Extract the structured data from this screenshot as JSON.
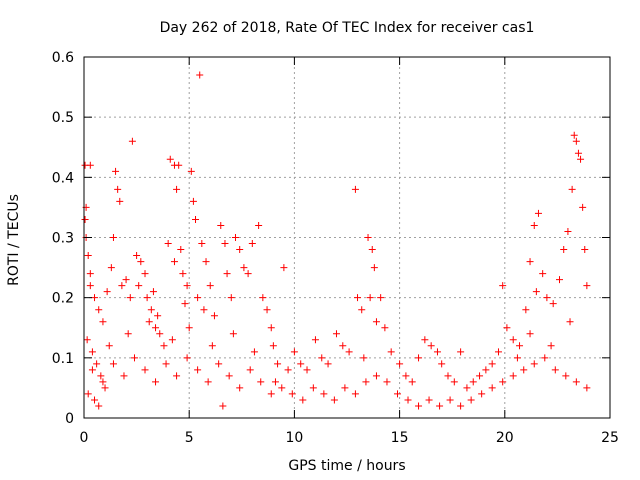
{
  "chart_data": {
    "type": "scatter",
    "title": "Day 262 of 2018, Rate Of TEC Index for receiver cas1",
    "xlabel": "GPS time / hours",
    "ylabel": "ROTI / TECUs",
    "xlim": [
      0,
      25
    ],
    "ylim": [
      0,
      0.6
    ],
    "x_ticks": [
      0,
      5,
      10,
      15,
      20,
      25
    ],
    "y_ticks": [
      0,
      0.1,
      0.2,
      0.3,
      0.4,
      0.5,
      0.6
    ],
    "x_tick_labels": [
      "0",
      "5",
      "10",
      "15",
      "20",
      "25"
    ],
    "y_tick_labels": [
      "0",
      "0.1",
      "0.2",
      "0.3",
      "0.4",
      "0.5",
      "0.6"
    ],
    "grid": true,
    "marker": "+",
    "color": "#ff0000",
    "series": [
      {
        "name": "ROTI",
        "points": [
          [
            0.05,
            0.42
          ],
          [
            0.3,
            0.42
          ],
          [
            0.1,
            0.35
          ],
          [
            0.05,
            0.33
          ],
          [
            0.1,
            0.3
          ],
          [
            0.2,
            0.27
          ],
          [
            0.3,
            0.22
          ],
          [
            0.5,
            0.2
          ],
          [
            0.7,
            0.18
          ],
          [
            0.9,
            0.16
          ],
          [
            0.15,
            0.13
          ],
          [
            0.4,
            0.11
          ],
          [
            0.6,
            0.09
          ],
          [
            0.8,
            0.07
          ],
          [
            1.0,
            0.05
          ],
          [
            0.2,
            0.04
          ],
          [
            0.5,
            0.03
          ],
          [
            1.2,
            0.12
          ],
          [
            1.5,
            0.41
          ],
          [
            1.6,
            0.38
          ],
          [
            1.7,
            0.36
          ],
          [
            1.4,
            0.3
          ],
          [
            1.3,
            0.25
          ],
          [
            1.8,
            0.22
          ],
          [
            2.0,
            0.23
          ],
          [
            2.2,
            0.2
          ],
          [
            2.3,
            0.46
          ],
          [
            2.5,
            0.27
          ],
          [
            2.7,
            0.26
          ],
          [
            2.9,
            0.24
          ],
          [
            3.0,
            0.2
          ],
          [
            3.2,
            0.18
          ],
          [
            3.4,
            0.15
          ],
          [
            3.5,
            0.17
          ],
          [
            3.6,
            0.14
          ],
          [
            3.8,
            0.12
          ],
          [
            4.0,
            0.29
          ],
          [
            4.1,
            0.43
          ],
          [
            4.3,
            0.42
          ],
          [
            4.5,
            0.42
          ],
          [
            4.4,
            0.38
          ],
          [
            4.3,
            0.26
          ],
          [
            4.6,
            0.28
          ],
          [
            4.7,
            0.24
          ],
          [
            4.9,
            0.22
          ],
          [
            5.1,
            0.41
          ],
          [
            5.2,
            0.36
          ],
          [
            5.3,
            0.33
          ],
          [
            5.5,
            0.57
          ],
          [
            5.6,
            0.29
          ],
          [
            5.4,
            0.2
          ],
          [
            5.8,
            0.26
          ],
          [
            6.0,
            0.22
          ],
          [
            6.2,
            0.17
          ],
          [
            6.5,
            0.32
          ],
          [
            6.7,
            0.29
          ],
          [
            6.8,
            0.24
          ],
          [
            7.0,
            0.2
          ],
          [
            7.2,
            0.3
          ],
          [
            7.4,
            0.28
          ],
          [
            7.6,
            0.25
          ],
          [
            7.8,
            0.24
          ],
          [
            8.0,
            0.29
          ],
          [
            8.3,
            0.32
          ],
          [
            8.5,
            0.2
          ],
          [
            8.7,
            0.18
          ],
          [
            8.9,
            0.15
          ],
          [
            9.0,
            0.12
          ],
          [
            9.2,
            0.09
          ],
          [
            9.5,
            0.25
          ],
          [
            9.7,
            0.08
          ],
          [
            10.0,
            0.11
          ],
          [
            10.3,
            0.09
          ],
          [
            10.6,
            0.08
          ],
          [
            11.0,
            0.13
          ],
          [
            11.3,
            0.1
          ],
          [
            11.6,
            0.09
          ],
          [
            12.0,
            0.14
          ],
          [
            12.3,
            0.12
          ],
          [
            12.6,
            0.11
          ],
          [
            12.9,
            0.38
          ],
          [
            13.0,
            0.2
          ],
          [
            13.2,
            0.18
          ],
          [
            13.5,
            0.3
          ],
          [
            13.7,
            0.28
          ],
          [
            13.8,
            0.25
          ],
          [
            13.6,
            0.2
          ],
          [
            13.9,
            0.16
          ],
          [
            14.1,
            0.2
          ],
          [
            14.3,
            0.15
          ],
          [
            14.6,
            0.11
          ],
          [
            15.0,
            0.09
          ],
          [
            15.3,
            0.07
          ],
          [
            15.6,
            0.06
          ],
          [
            15.9,
            0.1
          ],
          [
            16.2,
            0.13
          ],
          [
            16.5,
            0.12
          ],
          [
            16.8,
            0.11
          ],
          [
            17.0,
            0.09
          ],
          [
            17.3,
            0.07
          ],
          [
            17.6,
            0.06
          ],
          [
            17.9,
            0.11
          ],
          [
            18.2,
            0.05
          ],
          [
            18.5,
            0.06
          ],
          [
            18.8,
            0.07
          ],
          [
            19.1,
            0.08
          ],
          [
            19.4,
            0.09
          ],
          [
            19.7,
            0.11
          ],
          [
            19.9,
            0.22
          ],
          [
            20.1,
            0.15
          ],
          [
            20.4,
            0.13
          ],
          [
            20.7,
            0.12
          ],
          [
            21.0,
            0.18
          ],
          [
            21.2,
            0.26
          ],
          [
            21.4,
            0.32
          ],
          [
            21.6,
            0.34
          ],
          [
            21.8,
            0.24
          ],
          [
            22.0,
            0.2
          ],
          [
            22.3,
            0.19
          ],
          [
            22.6,
            0.23
          ],
          [
            22.8,
            0.28
          ],
          [
            23.0,
            0.31
          ],
          [
            23.2,
            0.38
          ],
          [
            23.3,
            0.47
          ],
          [
            23.4,
            0.46
          ],
          [
            23.5,
            0.44
          ],
          [
            23.6,
            0.43
          ],
          [
            23.7,
            0.35
          ],
          [
            23.8,
            0.28
          ],
          [
            23.9,
            0.22
          ],
          [
            0.4,
            0.08
          ],
          [
            0.9,
            0.06
          ],
          [
            1.4,
            0.09
          ],
          [
            1.9,
            0.07
          ],
          [
            2.4,
            0.1
          ],
          [
            2.9,
            0.08
          ],
          [
            3.4,
            0.06
          ],
          [
            3.9,
            0.09
          ],
          [
            4.4,
            0.07
          ],
          [
            4.9,
            0.1
          ],
          [
            5.4,
            0.08
          ],
          [
            5.9,
            0.06
          ],
          [
            6.4,
            0.09
          ],
          [
            6.9,
            0.07
          ],
          [
            7.4,
            0.05
          ],
          [
            7.9,
            0.08
          ],
          [
            8.4,
            0.06
          ],
          [
            8.9,
            0.04
          ],
          [
            9.4,
            0.05
          ],
          [
            9.9,
            0.04
          ],
          [
            10.4,
            0.03
          ],
          [
            10.9,
            0.05
          ],
          [
            11.4,
            0.04
          ],
          [
            11.9,
            0.03
          ],
          [
            12.4,
            0.05
          ],
          [
            12.9,
            0.04
          ],
          [
            13.4,
            0.06
          ],
          [
            13.9,
            0.07
          ],
          [
            14.4,
            0.06
          ],
          [
            14.9,
            0.04
          ],
          [
            15.4,
            0.03
          ],
          [
            15.9,
            0.02
          ],
          [
            16.4,
            0.03
          ],
          [
            16.9,
            0.02
          ],
          [
            17.4,
            0.03
          ],
          [
            17.9,
            0.02
          ],
          [
            18.4,
            0.03
          ],
          [
            18.9,
            0.04
          ],
          [
            19.4,
            0.05
          ],
          [
            19.9,
            0.06
          ],
          [
            20.4,
            0.07
          ],
          [
            20.9,
            0.08
          ],
          [
            21.4,
            0.09
          ],
          [
            21.9,
            0.1
          ],
          [
            22.4,
            0.08
          ],
          [
            22.9,
            0.07
          ],
          [
            23.4,
            0.06
          ],
          [
            23.9,
            0.05
          ],
          [
            0.7,
            0.02
          ],
          [
            6.6,
            0.02
          ],
          [
            2.1,
            0.14
          ],
          [
            3.1,
            0.16
          ],
          [
            4.2,
            0.13
          ],
          [
            5.0,
            0.15
          ],
          [
            6.1,
            0.12
          ],
          [
            7.1,
            0.14
          ],
          [
            8.1,
            0.11
          ],
          [
            9.1,
            0.06
          ],
          [
            13.3,
            0.1
          ],
          [
            21.2,
            0.14
          ],
          [
            22.2,
            0.12
          ],
          [
            23.1,
            0.16
          ],
          [
            0.3,
            0.24
          ],
          [
            1.1,
            0.21
          ],
          [
            2.6,
            0.22
          ],
          [
            3.3,
            0.21
          ],
          [
            4.8,
            0.19
          ],
          [
            5.7,
            0.18
          ],
          [
            20.6,
            0.1
          ],
          [
            21.5,
            0.21
          ]
        ]
      }
    ]
  }
}
